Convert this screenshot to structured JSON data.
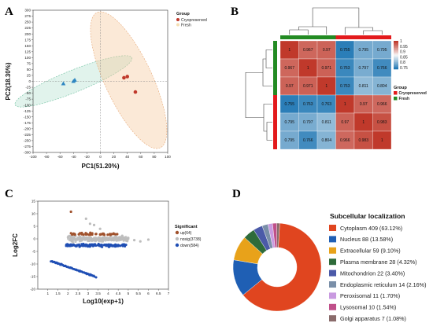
{
  "panels": {
    "a": "A",
    "b": "B",
    "c": "C",
    "d": "D"
  },
  "chart_data": [
    {
      "type": "scatter",
      "panel": "A",
      "xlabel": "PC1(51.20%)",
      "ylabel": "PC2(18.30%)",
      "xlim": [
        -100,
        100
      ],
      "ylim": [
        -300,
        300
      ],
      "xticks": [
        -100,
        -80,
        -60,
        -40,
        -20,
        0,
        20,
        40,
        60,
        80,
        100
      ],
      "yticks": [
        300,
        275,
        250,
        225,
        200,
        175,
        150,
        125,
        100,
        75,
        50,
        25,
        0,
        -25,
        -50,
        -75,
        -100,
        -125,
        -150,
        -175,
        -200,
        -225,
        -250,
        -275,
        -300
      ],
      "legend_title": "Group",
      "legend_position": "top-right",
      "series": [
        {
          "name": "Cryopreserved",
          "color": "#c0392b",
          "shape": "circle",
          "points": [
            [
              35,
              15
            ],
            [
              40,
              20
            ],
            [
              52,
              -45
            ]
          ]
        },
        {
          "name": "Fresh",
          "color": "#2e86c1",
          "shape": "triangle",
          "points": [
            [
              -55,
              -10
            ],
            [
              -40,
              0
            ],
            [
              -38,
              5
            ]
          ]
        }
      ]
    },
    {
      "type": "heatmap",
      "panel": "B",
      "matrix": [
        [
          "1",
          "0.967",
          "0.97",
          "0.755",
          "0.795",
          "0.795"
        ],
        [
          "0.967",
          "1",
          "0.971",
          "0.763",
          "0.797",
          "0.766"
        ],
        [
          "0.97",
          "0.971",
          "1",
          "0.763",
          "0.811",
          "0.804"
        ],
        [
          "0.755",
          "0.763",
          "0.763",
          "1",
          "0.97",
          "0.966"
        ],
        [
          "0.795",
          "0.797",
          "0.811",
          "0.97",
          "1",
          "0.983"
        ],
        [
          "0.795",
          "0.766",
          "0.804",
          "0.966",
          "0.983",
          "1"
        ]
      ],
      "values": [
        [
          1,
          0.967,
          0.97,
          0.755,
          0.795,
          0.795
        ],
        [
          0.967,
          1,
          0.971,
          0.763,
          0.797,
          0.766
        ],
        [
          0.97,
          0.971,
          1,
          0.763,
          0.811,
          0.804
        ],
        [
          0.755,
          0.763,
          0.763,
          1,
          0.97,
          0.966
        ],
        [
          0.795,
          0.797,
          0.811,
          0.97,
          1,
          0.983
        ],
        [
          0.795,
          0.766,
          0.804,
          0.966,
          0.983,
          1
        ]
      ],
      "col_groups": [
        "Fresh",
        "Fresh",
        "Fresh",
        "Cryopreserved",
        "Cryopreserved",
        "Cryopreserved"
      ],
      "row_groups": [
        "Fresh",
        "Fresh",
        "Fresh",
        "Cryopreserved",
        "Cryopreserved",
        "Cryopreserved"
      ],
      "colorbar_ticks": [
        "1",
        "0.95",
        "0.9",
        "0.85",
        "0.8",
        "0.75"
      ],
      "color_high": "#c0392b",
      "color_low": "#1f77b4",
      "legend_title": "Group",
      "legend": [
        {
          "name": "Cryopreserved",
          "color": "#e31a1c"
        },
        {
          "name": "Fresh",
          "color": "#238b23"
        }
      ]
    },
    {
      "type": "scatter",
      "panel": "C",
      "xlabel": "Log10(exp+1)",
      "ylabel": "Log2FC",
      "xlim": [
        0.5,
        7
      ],
      "ylim": [
        -20,
        15
      ],
      "xticks": [
        "1",
        "1.5",
        "2",
        "2.5",
        "3",
        "3.5",
        "4",
        "4.5",
        "5",
        "5.5",
        "6",
        "6.5",
        "7"
      ],
      "yticks": [
        "15",
        "10",
        "5",
        "0",
        "-5",
        "-10",
        "-15",
        "-20"
      ],
      "legend_title": "Significant",
      "legend_position": "right",
      "series": [
        {
          "name": "up(64)",
          "color": "#a0522d"
        },
        {
          "name": "nosig(3738)",
          "color": "#bdbdbd"
        },
        {
          "name": "down(584)",
          "color": "#1f4eb4"
        }
      ]
    },
    {
      "type": "pie",
      "panel": "D",
      "title": "Subcellular localization",
      "slices": [
        {
          "label": "Cytoplasm 409 (63.12%)",
          "value": 63.12,
          "color": "#e0451f"
        },
        {
          "label": "Nucleus 88 (13.58%)",
          "value": 13.58,
          "color": "#1f5fb4"
        },
        {
          "label": "Extracellular 59 (9.10%)",
          "value": 9.1,
          "color": "#e8a21a"
        },
        {
          "label": "Plasma membrane 28 (4.32%)",
          "value": 4.32,
          "color": "#2e6b3a"
        },
        {
          "label": "Mitochondrion 22 (3.40%)",
          "value": 3.4,
          "color": "#4b5aa8"
        },
        {
          "label": "Endoplasmic reticulum 14 (2.16%)",
          "value": 2.16,
          "color": "#7a8fa8"
        },
        {
          "label": "Peroxisomal 11 (1.70%)",
          "value": 1.7,
          "color": "#c99ae0"
        },
        {
          "label": "Lysosomal 10 (1.54%)",
          "value": 1.54,
          "color": "#c0508a"
        },
        {
          "label": "Golgi apparatus 7 (1.08%)",
          "value": 1.08,
          "color": "#8a6b6b"
        }
      ]
    }
  ]
}
